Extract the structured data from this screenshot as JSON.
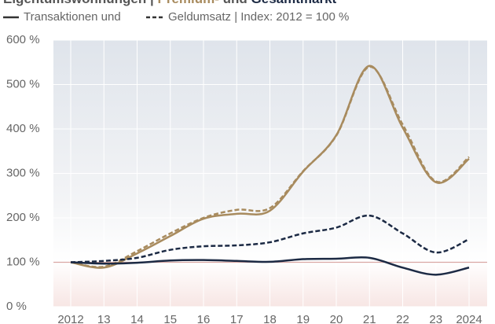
{
  "chart_data": {
    "type": "line",
    "title_parts": [
      "Eigentumswohnungen | ",
      "Premium-",
      " und ",
      "Gesamtmarkt"
    ],
    "title_colors": [
      "#555555",
      "#a88b5e",
      "#555555",
      "#1c2a44"
    ],
    "legend_parts": [
      "Transaktionen und",
      "Geldumsatz | Index: 2012 = 100 %"
    ],
    "categories": [
      "2012",
      "13",
      "14",
      "15",
      "16",
      "17",
      "18",
      "19",
      "20",
      "21",
      "22",
      "23",
      "2024"
    ],
    "series": [
      {
        "color": "#a88b5e",
        "dashed": false,
        "values": [
          100,
          88,
          120,
          159,
          198,
          209,
          216,
          304,
          386,
          542,
          403,
          280,
          333
        ]
      },
      {
        "color": "#a88b5e",
        "dashed": true,
        "values": [
          100,
          90,
          125,
          165,
          200,
          218,
          222,
          305,
          385,
          540,
          410,
          282,
          337
        ]
      },
      {
        "color": "#1c2a44",
        "dashed": false,
        "values": [
          100,
          97,
          99,
          104,
          105,
          103,
          101,
          107,
          108,
          110,
          88,
          72,
          88
        ]
      },
      {
        "color": "#1c2a44",
        "dashed": true,
        "values": [
          100,
          103,
          110,
          128,
          136,
          138,
          145,
          165,
          178,
          205,
          165,
          122,
          152
        ]
      }
    ],
    "ylim": [
      0,
      600
    ],
    "yticks": [
      {
        "value": 0,
        "label": "0 %"
      },
      {
        "value": 100,
        "label": "100 %"
      },
      {
        "value": 200,
        "label": "200 %"
      },
      {
        "value": 300,
        "label": "300 %"
      },
      {
        "value": 400,
        "label": "400 %"
      },
      {
        "value": 500,
        "label": "500 %"
      },
      {
        "value": 600,
        "label": "600 %"
      }
    ],
    "reference_line": 100,
    "grid": true
  }
}
